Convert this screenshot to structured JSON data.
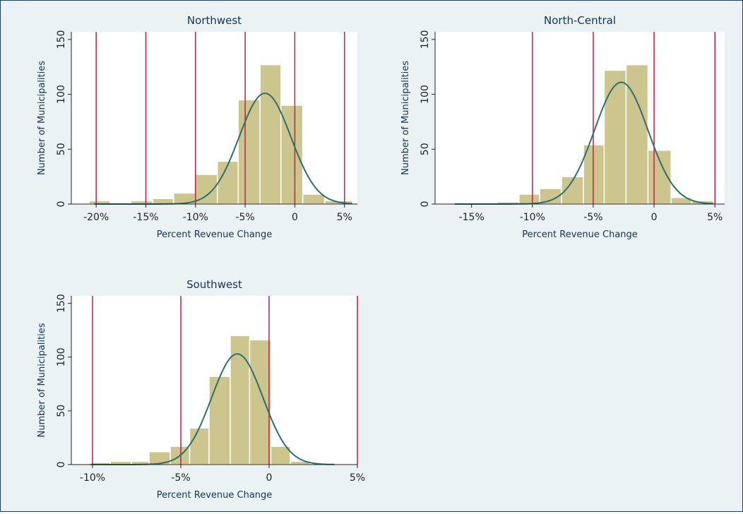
{
  "colors": {
    "background": "#eaf2f3",
    "plot_background": "#ffffff",
    "bar_fill": "#ccc58e",
    "bar_stroke": "#ffffff",
    "density_line": "#2e6f6b",
    "reference_lines": "#c41e4a",
    "border": "#1e3d5c"
  },
  "chart_data": [
    {
      "type": "bar",
      "subtype": "histogram-with-normal-density",
      "title": "Northwest",
      "xlabel": "Percent Revenue Change",
      "ylabel": "Number of Municipalities",
      "xlim": [
        -22.5,
        6.3
      ],
      "ylim": [
        0,
        157
      ],
      "x_ticks": [
        -20,
        -15,
        -10,
        -5,
        0,
        5
      ],
      "x_tick_labels": [
        "-20%",
        "-15%",
        "-10%",
        "-5%",
        "0",
        "5%"
      ],
      "y_ticks": [
        0,
        50,
        100,
        150
      ],
      "y_tick_labels": [
        "0",
        "50",
        "100",
        "150"
      ],
      "reference_lines_x": [
        -20,
        -15,
        -10,
        -5,
        0,
        5
      ],
      "bins": [
        {
          "x0": -20.7,
          "x1": -18.6,
          "count": 3
        },
        {
          "x0": -18.6,
          "x1": -16.5,
          "count": 0
        },
        {
          "x0": -16.5,
          "x1": -14.3,
          "count": 3
        },
        {
          "x0": -14.3,
          "x1": -12.2,
          "count": 5
        },
        {
          "x0": -12.2,
          "x1": -10.0,
          "count": 10
        },
        {
          "x0": -10.0,
          "x1": -7.8,
          "count": 27
        },
        {
          "x0": -7.8,
          "x1": -5.7,
          "count": 39
        },
        {
          "x0": -5.7,
          "x1": -3.5,
          "count": 95
        },
        {
          "x0": -3.5,
          "x1": -1.4,
          "count": 127
        },
        {
          "x0": -1.4,
          "x1": 0.8,
          "count": 90
        },
        {
          "x0": 0.8,
          "x1": 3.0,
          "count": 9
        },
        {
          "x0": 3.0,
          "x1": 5.8,
          "count": 3
        }
      ],
      "density": {
        "mean": -3.0,
        "sd": 2.6,
        "peak": 101,
        "x_range": [
          -20.2,
          5.8
        ]
      }
    },
    {
      "type": "bar",
      "subtype": "histogram-with-normal-density",
      "title": "North-Central",
      "xlabel": "Percent Revenue Change",
      "ylabel": "Number of Municipalities",
      "xlim": [
        -18.0,
        5.8
      ],
      "ylim": [
        0,
        157
      ],
      "x_ticks": [
        -15,
        -10,
        -5,
        0,
        5
      ],
      "x_tick_labels": [
        "-15%",
        "-10%",
        "-5%",
        "0",
        "5%"
      ],
      "y_ticks": [
        0,
        50,
        100,
        150
      ],
      "y_tick_labels": [
        "0",
        "50",
        "100",
        "150"
      ],
      "reference_lines_x": [
        -10,
        -5,
        0,
        5
      ],
      "bins": [
        {
          "x0": -16.4,
          "x1": -14.7,
          "count": 1
        },
        {
          "x0": -14.7,
          "x1": -12.9,
          "count": 1
        },
        {
          "x0": -12.9,
          "x1": -11.1,
          "count": 2
        },
        {
          "x0": -11.1,
          "x1": -9.4,
          "count": 9
        },
        {
          "x0": -9.4,
          "x1": -7.6,
          "count": 14
        },
        {
          "x0": -7.6,
          "x1": -5.8,
          "count": 25
        },
        {
          "x0": -5.8,
          "x1": -4.1,
          "count": 54
        },
        {
          "x0": -4.1,
          "x1": -2.3,
          "count": 122
        },
        {
          "x0": -2.3,
          "x1": -0.5,
          "count": 127
        },
        {
          "x0": -0.5,
          "x1": 1.4,
          "count": 49
        },
        {
          "x0": 1.4,
          "x1": 3.1,
          "count": 6
        },
        {
          "x0": 3.1,
          "x1": 4.9,
          "count": 3
        }
      ],
      "density": {
        "mean": -2.7,
        "sd": 2.2,
        "peak": 111,
        "x_range": [
          -16.4,
          4.9
        ]
      }
    },
    {
      "type": "bar",
      "subtype": "histogram-with-normal-density",
      "title": "Southwest",
      "xlabel": "Percent Revenue Change",
      "ylabel": "Number of Municipalities",
      "xlim": [
        -11.2,
        5.0
      ],
      "ylim": [
        0,
        157
      ],
      "x_ticks": [
        -10,
        -5,
        0,
        5
      ],
      "x_tick_labels": [
        "-10%",
        "-5%",
        "0",
        "5%"
      ],
      "y_ticks": [
        0,
        50,
        100,
        150
      ],
      "y_tick_labels": [
        "0",
        "50",
        "100",
        "150"
      ],
      "reference_lines_x": [
        -10,
        -5,
        0,
        5
      ],
      "bins": [
        {
          "x0": -10.1,
          "x1": -9.0,
          "count": 2
        },
        {
          "x0": -9.0,
          "x1": -7.8,
          "count": 3
        },
        {
          "x0": -7.8,
          "x1": -6.8,
          "count": 3
        },
        {
          "x0": -6.8,
          "x1": -5.6,
          "count": 12
        },
        {
          "x0": -5.6,
          "x1": -4.5,
          "count": 17
        },
        {
          "x0": -4.5,
          "x1": -3.4,
          "count": 34
        },
        {
          "x0": -3.4,
          "x1": -2.2,
          "count": 82
        },
        {
          "x0": -2.2,
          "x1": -1.1,
          "count": 120
        },
        {
          "x0": -1.1,
          "x1": 0.1,
          "count": 116
        },
        {
          "x0": 0.1,
          "x1": 1.2,
          "count": 17
        },
        {
          "x0": 1.2,
          "x1": 2.3,
          "count": 3
        }
      ],
      "density": {
        "mean": -1.8,
        "sd": 1.45,
        "peak": 103,
        "x_range": [
          -10.1,
          3.7
        ]
      }
    }
  ]
}
